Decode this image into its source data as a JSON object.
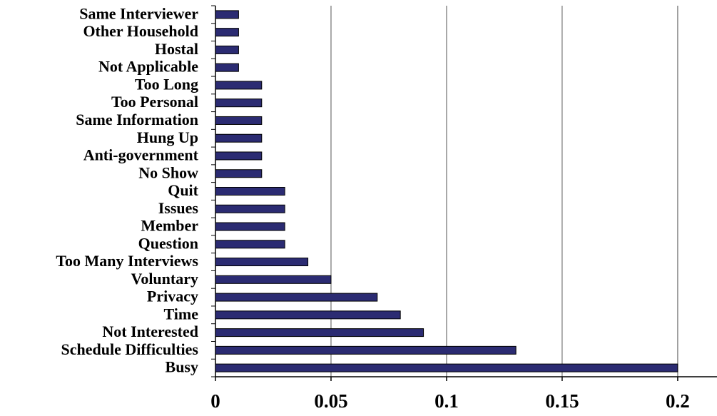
{
  "chart_data": {
    "type": "bar",
    "orientation": "horizontal",
    "categories": [
      "Same Interviewer",
      "Other Household",
      "Hostal",
      "Not Applicable",
      "Too Long",
      "Too Personal",
      "Same Information",
      "Hung Up",
      "Anti-government",
      "No Show",
      "Quit",
      "Issues",
      "Member",
      "Question",
      "Too Many Interviews",
      "Voluntary",
      "Privacy",
      "Time",
      "Not Interested",
      "Schedule Difficulties",
      "Busy"
    ],
    "values": [
      0.01,
      0.01,
      0.01,
      0.01,
      0.02,
      0.02,
      0.02,
      0.02,
      0.02,
      0.02,
      0.03,
      0.03,
      0.03,
      0.03,
      0.04,
      0.05,
      0.07,
      0.08,
      0.09,
      0.13,
      0.2
    ],
    "color": "#2b2b72",
    "xlim": [
      0,
      0.217
    ],
    "xticks": [
      0,
      0.05,
      0.1,
      0.15,
      0.2
    ],
    "grid": true
  }
}
